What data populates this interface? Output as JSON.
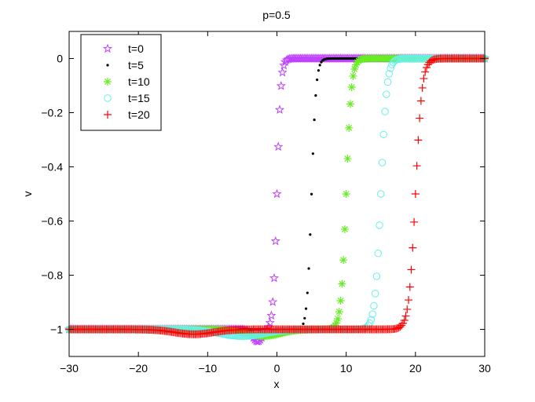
{
  "chart_data": {
    "type": "line",
    "title": "p=0.5",
    "xlabel": "x",
    "ylabel": "v",
    "xlim": [
      -30,
      30
    ],
    "ylim": [
      -1.1,
      0.1
    ],
    "xticks": [
      -30,
      -20,
      -10,
      0,
      10,
      20,
      30
    ],
    "yticks": [
      0,
      -0.2,
      -0.4,
      -0.6,
      -0.8,
      -1
    ],
    "xtick_labels": [
      "−30",
      "−20",
      "−10",
      "0",
      "10",
      "20",
      "30"
    ],
    "ytick_labels": [
      "0",
      "−0.2",
      "−0.4",
      "−0.6",
      "−0.8",
      "−1"
    ],
    "grid": false,
    "legend_position": "top-left",
    "series": [
      {
        "name": "t=0",
        "marker": "star",
        "color": "#bf40ff",
        "center": 0,
        "width": 0.55,
        "dip_center": -2.8,
        "dip_depth": 0.045,
        "dip_width": 1.0
      },
      {
        "name": "t=5",
        "marker": "dot",
        "color": "#000000",
        "center": 5,
        "width": 0.65,
        "dip_center": 2.0,
        "dip_depth": 0.01,
        "dip_width": 1.8
      },
      {
        "name": "t=10",
        "marker": "asterisk",
        "color": "#66ee22",
        "center": 10,
        "width": 0.75,
        "dip_center": -2.0,
        "dip_depth": 0.025,
        "dip_width": 3.5
      },
      {
        "name": "t=15",
        "marker": "circle",
        "color": "#66f0e8",
        "center": 15,
        "width": 0.85,
        "dip_center": -5.0,
        "dip_depth": 0.025,
        "dip_width": 4.5
      },
      {
        "name": "t=20",
        "marker": "plus",
        "color": "#ff0000",
        "center": 20,
        "width": 0.95,
        "dip_center": -12.0,
        "dip_depth": 0.018,
        "dip_width": 4.0
      }
    ]
  }
}
